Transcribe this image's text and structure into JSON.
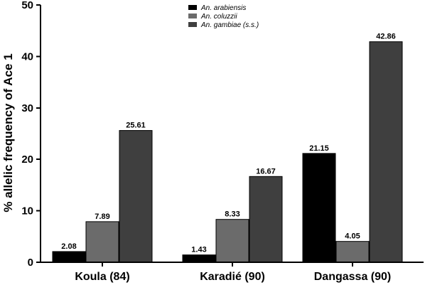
{
  "chart_data": {
    "type": "bar",
    "categories": [
      "Koula (84)",
      "Karadié (90)",
      "Dangassa (90)"
    ],
    "series": [
      {
        "name": "An. arabiensis",
        "values": [
          2.08,
          1.43,
          21.15
        ],
        "color": "#000000"
      },
      {
        "name": "An. coluzzii",
        "values": [
          7.89,
          8.33,
          4.05
        ],
        "color": "#6b6b6b"
      },
      {
        "name": "An. gambiae (s.s.)",
        "values": [
          25.61,
          16.67,
          42.86
        ],
        "color": "#3f3f3f"
      }
    ],
    "value_labels": [
      [
        "2.08",
        "1.43",
        "21.15"
      ],
      [
        "7.89",
        "8.33",
        "4.05"
      ],
      [
        "25.61",
        "16.67",
        "42.86"
      ]
    ],
    "title": "",
    "xlabel": "",
    "ylabel": "% allelic frequency of Ace 1",
    "ylim": [
      0,
      50
    ],
    "yticks": [
      "0",
      "10",
      "20",
      "30",
      "40",
      "50"
    ],
    "grid": false,
    "legend_position": "top-center"
  }
}
